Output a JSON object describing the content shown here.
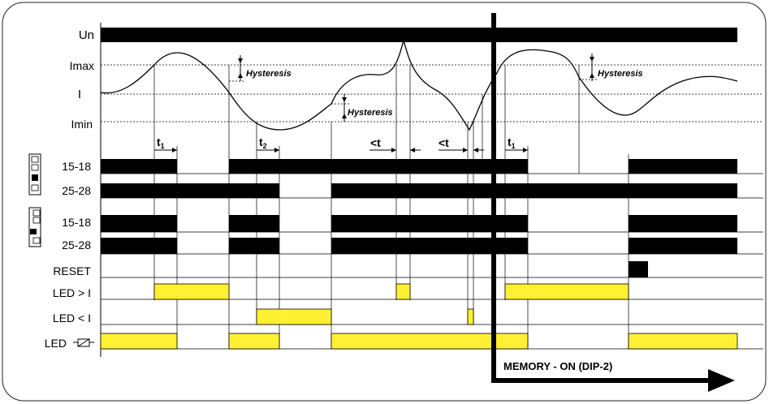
{
  "labels": {
    "un": "Un",
    "imax": "Imax",
    "i": "I",
    "imin": "Imin",
    "ch1a": "15-18",
    "ch1b": "25-28",
    "ch2a": "15-18",
    "ch2b": "25-28",
    "reset": "RESET",
    "led_gt": "LED > I",
    "led_lt": "LED < I",
    "led_relay": "LED"
  },
  "annotations": {
    "hysteresis": "Hysteresis",
    "t1": "t",
    "t1_sub": "1",
    "t2": "t",
    "t2_sub": "2",
    "lt": "<t",
    "memory": "MEMORY - ON (DIP-2)"
  },
  "colors": {
    "led_on": "#fff033",
    "bar": "#000000",
    "background": "#ffffff"
  }
}
